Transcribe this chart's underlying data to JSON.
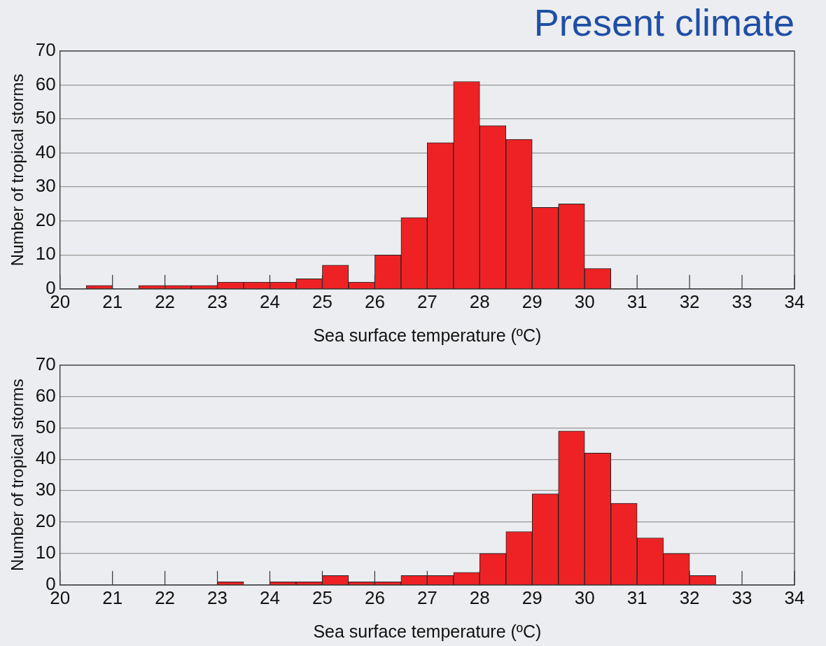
{
  "chart_data": [
    {
      "type": "histogram",
      "title": "Present climate",
      "xlabel": "Sea surface temperature (ºC)",
      "ylabel": "Number of tropical storms",
      "color": "#ee2225",
      "bins": [
        20.5,
        21,
        21.5,
        22,
        22.5,
        23,
        23.5,
        24,
        24.5,
        25,
        25.5,
        26,
        26.5,
        27,
        27.5,
        28,
        28.5,
        29,
        29.5,
        30,
        30.5
      ],
      "values": [
        1,
        0,
        1,
        1,
        1,
        2,
        2,
        2,
        3,
        7,
        2,
        10,
        21,
        43,
        61,
        48,
        44,
        24,
        25,
        6
      ],
      "xlim": [
        20,
        34
      ],
      "xticks": [
        20,
        21,
        22,
        23,
        24,
        25,
        26,
        27,
        28,
        29,
        30,
        31,
        32,
        33,
        34
      ],
      "ylim": [
        0,
        70
      ],
      "yticks": [
        0,
        10,
        20,
        30,
        40,
        50,
        60,
        70
      ],
      "grid": "y"
    },
    {
      "type": "histogram",
      "xlabel": "Sea surface temperature (ºC)",
      "ylabel": "Number of tropical storms",
      "color": "#ee2225",
      "bins": [
        23,
        23.5,
        24,
        24.5,
        25,
        25.5,
        26,
        26.5,
        27,
        27.5,
        28,
        28.5,
        29,
        29.5,
        30,
        30.5,
        31,
        31.5,
        32,
        32.5
      ],
      "values": [
        1,
        0,
        1,
        1,
        3,
        1,
        1,
        3,
        3,
        4,
        10,
        17,
        29,
        49,
        42,
        26,
        15,
        10,
        3
      ],
      "xlim": [
        20,
        34
      ],
      "xticks": [
        20,
        21,
        22,
        23,
        24,
        25,
        26,
        27,
        28,
        29,
        30,
        31,
        32,
        33,
        34
      ],
      "ylim": [
        0,
        70
      ],
      "yticks": [
        0,
        10,
        20,
        30,
        40,
        50,
        60,
        70
      ],
      "grid": "y"
    }
  ]
}
